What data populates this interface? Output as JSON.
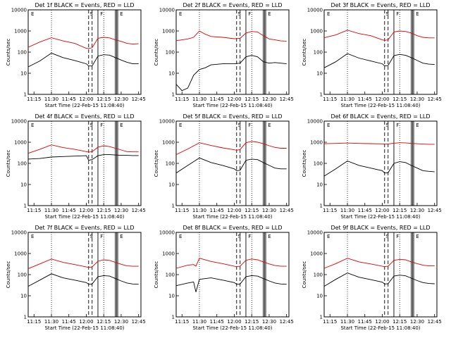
{
  "figure": {
    "xlabel": "Start Time (22-Feb-15 11:08:40)",
    "ylabel": "Counts/sec",
    "x_ticks": [
      "11:15",
      "11:30",
      "11:45",
      "12:00",
      "12:15",
      "12:30",
      "12:45"
    ],
    "y_ticks": [
      "1",
      "10",
      "100",
      "1000",
      "10000"
    ]
  },
  "colors": {
    "events": "#000000",
    "lld": "#e00000",
    "axes": "#000000"
  },
  "chart_data": [
    {
      "type": "line",
      "title": "Det 1f BLACK = Events, RED = LLD",
      "xlim": [
        "11:10",
        "12:47"
      ],
      "ylim": [
        1,
        10000
      ],
      "yscale": "log",
      "grid": "dotted x lines at 11:30 and 12:15",
      "x": [
        "11:10",
        "11:20",
        "11:30",
        "11:40",
        "11:50",
        "12:00",
        "12:02",
        "12:05",
        "12:10",
        "12:15",
        "12:20",
        "12:25",
        "12:30",
        "12:35",
        "12:40",
        "12:45"
      ],
      "series": [
        {
          "values": [
            20,
            38,
            90,
            55,
            40,
            28,
            22,
            22,
            65,
            75,
            72,
            55,
            42,
            33,
            28,
            28
          ]
        },
        {
          "values": [
            170,
            300,
            480,
            340,
            260,
            150,
            150,
            160,
            450,
            500,
            470,
            380,
            320,
            260,
            240,
            250
          ]
        }
      ],
      "annotations": [
        "S",
        "F",
        "E"
      ]
    },
    {
      "type": "line",
      "title": "Det 2f BLACK = Events, RED = LLD",
      "xlim": [
        "11:10",
        "12:47"
      ],
      "ylim": [
        1,
        10000
      ],
      "yscale": "log",
      "grid": "dotted x lines at 11:30 and 12:15",
      "x": [
        "11:10",
        "11:15",
        "11:20",
        "11:25",
        "11:30",
        "11:35",
        "11:40",
        "11:50",
        "12:00",
        "12:05",
        "12:10",
        "12:15",
        "12:20",
        "12:25",
        "12:30",
        "12:35",
        "12:40",
        "12:45"
      ],
      "series": [
        {
          "values": [
            3,
            1.5,
            2,
            8,
            15,
            18,
            25,
            28,
            28,
            30,
            60,
            70,
            60,
            35,
            30,
            32,
            30,
            28
          ]
        },
        {
          "values": [
            350,
            380,
            420,
            500,
            1000,
            700,
            550,
            500,
            430,
            450,
            800,
            950,
            900,
            600,
            420,
            380,
            340,
            330
          ]
        }
      ],
      "annotations": [
        "S",
        "F",
        "E"
      ]
    },
    {
      "type": "line",
      "title": "Det 3f BLACK = Events, RED = LLD",
      "xlim": [
        "11:10",
        "12:47"
      ],
      "ylim": [
        1,
        10000
      ],
      "yscale": "log",
      "grid": "dotted x lines at 11:30 and 12:15",
      "x": [
        "11:10",
        "11:20",
        "11:30",
        "11:40",
        "11:50",
        "12:00",
        "12:02",
        "12:05",
        "12:10",
        "12:15",
        "12:20",
        "12:25",
        "12:30",
        "12:35",
        "12:40",
        "12:45"
      ],
      "series": [
        {
          "values": [
            18,
            35,
            85,
            52,
            38,
            28,
            22,
            23,
            68,
            78,
            70,
            55,
            40,
            30,
            27,
            26
          ]
        },
        {
          "values": [
            480,
            650,
            1100,
            750,
            600,
            380,
            360,
            380,
            900,
            1000,
            950,
            800,
            600,
            500,
            470,
            470
          ]
        }
      ],
      "annotations": [
        "S",
        "F",
        "E"
      ]
    },
    {
      "type": "line",
      "title": "Det 4f BLACK = Events, RED = LLD",
      "xlim": [
        "11:10",
        "12:47"
      ],
      "ylim": [
        1,
        10000
      ],
      "yscale": "log",
      "grid": "dotted x lines at 11:30 and 12:15",
      "x": [
        "11:10",
        "11:20",
        "11:30",
        "11:40",
        "11:50",
        "12:00",
        "12:02",
        "12:05",
        "12:10",
        "12:15",
        "12:20",
        "12:25",
        "12:30",
        "12:35",
        "12:40",
        "12:45"
      ],
      "series": [
        {
          "values": [
            160,
            170,
            200,
            210,
            220,
            230,
            140,
            150,
            230,
            260,
            260,
            250,
            240,
            240,
            235,
            235
          ]
        },
        {
          "values": [
            300,
            460,
            750,
            560,
            460,
            360,
            340,
            360,
            580,
            680,
            620,
            520,
            430,
            360,
            350,
            350
          ]
        }
      ],
      "annotations": [
        "S",
        "F",
        "E"
      ]
    },
    {
      "type": "line",
      "title": "Det 5f BLACK = Events, RED = LLD",
      "xlim": [
        "11:10",
        "12:47"
      ],
      "ylim": [
        1,
        10000
      ],
      "yscale": "log",
      "grid": "dotted x lines at 11:30 and 12:15",
      "x": [
        "11:10",
        "11:20",
        "11:30",
        "11:40",
        "11:50",
        "12:00",
        "12:02",
        "12:05",
        "12:10",
        "12:15",
        "12:20",
        "12:25",
        "12:30",
        "12:35",
        "12:40",
        "12:45"
      ],
      "series": [
        {
          "values": [
            35,
            80,
            180,
            110,
            80,
            55,
            45,
            47,
            140,
            160,
            150,
            110,
            80,
            60,
            55,
            55
          ]
        },
        {
          "values": [
            260,
            480,
            950,
            700,
            540,
            440,
            420,
            450,
            950,
            1100,
            1000,
            850,
            680,
            570,
            520,
            520
          ]
        }
      ],
      "annotations": [
        "S",
        "F",
        "E"
      ]
    },
    {
      "type": "line",
      "title": "Det 6f BLACK = Events, RED = LLD",
      "xlim": [
        "11:10",
        "12:47"
      ],
      "ylim": [
        1,
        10000
      ],
      "yscale": "log",
      "grid": "dotted x lines at 11:30 and 12:15",
      "x": [
        "11:10",
        "11:20",
        "11:30",
        "11:40",
        "11:50",
        "12:00",
        "12:02",
        "12:05",
        "12:10",
        "12:15",
        "12:20",
        "12:25",
        "12:30",
        "12:35",
        "12:40",
        "12:45"
      ],
      "series": [
        {
          "values": [
            25,
            55,
            130,
            80,
            60,
            45,
            35,
            36,
            100,
            120,
            110,
            80,
            60,
            45,
            42,
            40
          ]
        },
        {
          "values": [
            850,
            880,
            920,
            880,
            860,
            840,
            820,
            830,
            900,
            950,
            930,
            880,
            850,
            820,
            800,
            800
          ]
        }
      ],
      "annotations": [
        "S",
        "F",
        "E"
      ]
    },
    {
      "type": "line",
      "title": "Det 7f BLACK = Events, RED = LLD",
      "xlim": [
        "11:10",
        "12:47"
      ],
      "ylim": [
        1,
        10000
      ],
      "yscale": "log",
      "grid": "dotted x lines at 11:30 and 12:15",
      "x": [
        "11:10",
        "11:20",
        "11:30",
        "11:40",
        "11:50",
        "12:00",
        "12:02",
        "12:05",
        "12:10",
        "12:15",
        "12:20",
        "12:25",
        "12:30",
        "12:35",
        "12:40",
        "12:45"
      ],
      "series": [
        {
          "values": [
            28,
            55,
            110,
            70,
            55,
            42,
            35,
            36,
            80,
            90,
            85,
            65,
            50,
            40,
            36,
            35
          ]
        },
        {
          "values": [
            190,
            320,
            550,
            380,
            300,
            230,
            220,
            230,
            430,
            500,
            470,
            380,
            310,
            260,
            250,
            250
          ]
        }
      ],
      "annotations": [
        "S",
        "F",
        "E"
      ]
    },
    {
      "type": "line",
      "title": "Det 8f BLACK = Events, RED = LLD",
      "xlim": [
        "11:10",
        "12:47"
      ],
      "ylim": [
        1,
        10000
      ],
      "yscale": "log",
      "grid": "dotted x lines at 11:30 and 12:15",
      "x": [
        "11:10",
        "11:20",
        "11:25",
        "11:27",
        "11:30",
        "11:40",
        "11:50",
        "12:00",
        "12:02",
        "12:05",
        "12:10",
        "12:15",
        "12:20",
        "12:25",
        "12:30",
        "12:35",
        "12:40",
        "12:45"
      ],
      "series": [
        {
          "values": [
            30,
            40,
            45,
            15,
            60,
            70,
            55,
            42,
            35,
            36,
            80,
            90,
            85,
            65,
            50,
            40,
            36,
            35
          ]
        },
        {
          "values": [
            200,
            280,
            300,
            250,
            600,
            420,
            330,
            250,
            240,
            250,
            480,
            550,
            500,
            400,
            320,
            270,
            250,
            250
          ]
        }
      ],
      "annotations": [
        "S",
        "F",
        "E"
      ]
    },
    {
      "type": "line",
      "title": "Det 9f BLACK = Events, RED = LLD",
      "xlim": [
        "11:10",
        "12:47"
      ],
      "ylim": [
        1,
        10000
      ],
      "yscale": "log",
      "grid": "dotted x lines at 11:30 and 12:15",
      "x": [
        "11:10",
        "11:20",
        "11:30",
        "11:40",
        "11:50",
        "12:00",
        "12:02",
        "12:05",
        "12:10",
        "12:15",
        "12:20",
        "12:25",
        "12:30",
        "12:35",
        "12:40",
        "12:45"
      ],
      "series": [
        {
          "values": [
            28,
            60,
            120,
            75,
            58,
            44,
            36,
            37,
            85,
            95,
            88,
            68,
            52,
            42,
            38,
            37
          ]
        },
        {
          "values": [
            200,
            330,
            600,
            400,
            320,
            250,
            240,
            250,
            470,
            530,
            500,
            400,
            330,
            280,
            260,
            260
          ]
        }
      ],
      "annotations": [
        "S",
        "F",
        "E"
      ]
    }
  ]
}
